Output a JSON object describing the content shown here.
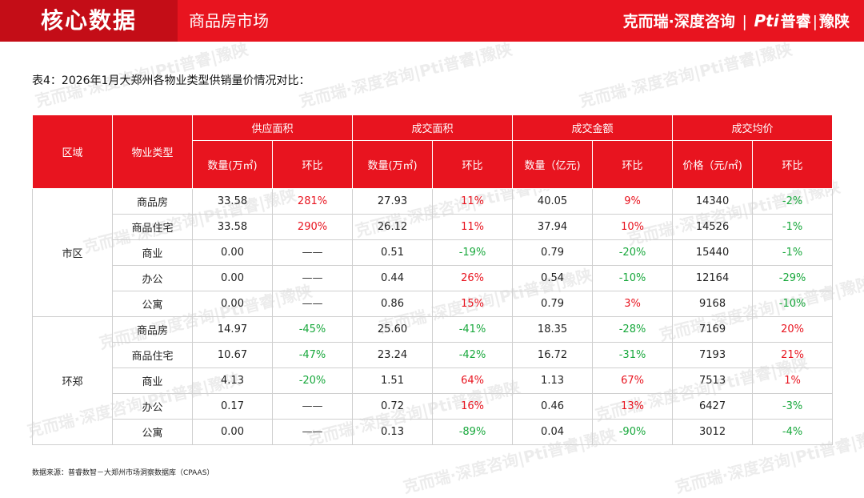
{
  "header": {
    "section_title": "核心数据",
    "subtitle": "商品房市场",
    "brand_1": "克而瑞·深度咨询",
    "brand_2_mark": "Pti",
    "brand_2_name": "普睿",
    "brand_2_region": "豫陕"
  },
  "table_caption": "表4：2026年1月大郑州各物业类型供销量价情况对比：",
  "table": {
    "header_region": "区域",
    "header_type": "物业类型",
    "groups": [
      "供应面积",
      "成交面积",
      "成交金额",
      "成交均价"
    ],
    "subheaders": [
      "数量(万㎡)",
      "环比",
      "数量(万㎡)",
      "环比",
      "数量（亿元)",
      "环比",
      "价格（元/㎡)",
      "环比"
    ],
    "regions": [
      {
        "name": "市区",
        "rows": [
          {
            "type": "商品房",
            "cells": [
              "33.58",
              "281%",
              "27.93",
              "11%",
              "40.05",
              "9%",
              "14340",
              "-2%"
            ]
          },
          {
            "type": "商品住宅",
            "cells": [
              "33.58",
              "290%",
              "26.12",
              "11%",
              "37.94",
              "10%",
              "14526",
              "-1%"
            ]
          },
          {
            "type": "商业",
            "cells": [
              "0.00",
              "——",
              "0.51",
              "-19%",
              "0.79",
              "-20%",
              "15440",
              "-1%"
            ]
          },
          {
            "type": "办公",
            "cells": [
              "0.00",
              "——",
              "0.44",
              "26%",
              "0.54",
              "-10%",
              "12164",
              "-29%"
            ]
          },
          {
            "type": "公寓",
            "cells": [
              "0.00",
              "——",
              "0.86",
              "15%",
              "0.79",
              "3%",
              "9168",
              "-10%"
            ]
          }
        ]
      },
      {
        "name": "环郑",
        "rows": [
          {
            "type": "商品房",
            "cells": [
              "14.97",
              "-45%",
              "25.60",
              "-41%",
              "18.35",
              "-28%",
              "7169",
              "20%"
            ]
          },
          {
            "type": "商品住宅",
            "cells": [
              "10.67",
              "-47%",
              "23.24",
              "-42%",
              "16.72",
              "-31%",
              "7193",
              "21%"
            ]
          },
          {
            "type": "商业",
            "cells": [
              "4.13",
              "-20%",
              "1.51",
              "64%",
              "1.13",
              "67%",
              "7513",
              "1%"
            ]
          },
          {
            "type": "办公",
            "cells": [
              "0.17",
              "——",
              "0.72",
              "16%",
              "0.46",
              "13%",
              "6427",
              "-3%"
            ]
          },
          {
            "type": "公寓",
            "cells": [
              "0.00",
              "——",
              "0.13",
              "-89%",
              "0.04",
              "-90%",
              "3012",
              "-4%"
            ]
          }
        ]
      }
    ]
  },
  "footnote": "数据来源：普睿数智－大郑州市场洞察数据库（CPAAS）",
  "watermark": "克而瑞·深度咨询|Pti普睿|豫陕",
  "colors": {
    "accent_red": "#e8141f",
    "dark_red": "#c40d17",
    "increase": "#e8141f",
    "decrease": "#18a83c"
  }
}
